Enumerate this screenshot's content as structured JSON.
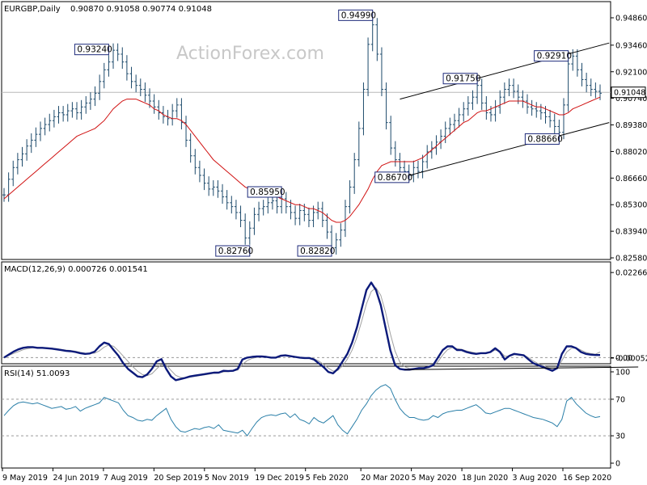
{
  "chart_data": {
    "type": "line",
    "symbol_label": "EURGBP,Daily",
    "ohlc_readout": "0.90870 0.91058 0.90774 0.91048",
    "watermark": "ActionForex.com",
    "current_price_label": "0.91048",
    "x_tick_labels": [
      "9 May 2019",
      "24 Jun 2019",
      "7 Aug 2019",
      "20 Sep 2019",
      "5 Nov 2019",
      "19 Dec 2019",
      "5 Feb 2020",
      "20 Mar 2020",
      "5 May 2020",
      "18 Jun 2020",
      "3 Aug 2020",
      "16 Sep 2020"
    ],
    "price_panel": {
      "ylim": [
        0.8258,
        0.9486
      ],
      "y_ticks": [
        "0.94860",
        "0.93460",
        "0.92100",
        "0.90740",
        "0.89380",
        "0.88020",
        "0.86660",
        "0.85300",
        "0.83940",
        "0.82580"
      ],
      "current_price": 0.91048,
      "close_values": [
        0.858,
        0.866,
        0.872,
        0.876,
        0.879,
        0.883,
        0.886,
        0.889,
        0.892,
        0.894,
        0.896,
        0.898,
        0.9,
        0.899,
        0.901,
        0.902,
        0.9,
        0.903,
        0.905,
        0.907,
        0.91,
        0.916,
        0.922,
        0.926,
        0.932,
        0.93,
        0.926,
        0.92,
        0.916,
        0.914,
        0.912,
        0.909,
        0.906,
        0.903,
        0.9,
        0.898,
        0.897,
        0.901,
        0.904,
        0.895,
        0.886,
        0.878,
        0.872,
        0.868,
        0.864,
        0.861,
        0.862,
        0.86,
        0.857,
        0.854,
        0.852,
        0.849,
        0.845,
        0.836,
        0.841,
        0.848,
        0.851,
        0.852,
        0.854,
        0.855,
        0.852,
        0.856,
        0.852,
        0.849,
        0.846,
        0.85,
        0.848,
        0.845,
        0.849,
        0.851,
        0.845,
        0.839,
        0.831,
        0.835,
        0.84,
        0.852,
        0.862,
        0.876,
        0.892,
        0.912,
        0.935,
        0.945,
        0.93,
        0.912,
        0.895,
        0.882,
        0.876,
        0.872,
        0.87,
        0.868,
        0.872,
        0.87,
        0.875,
        0.88,
        0.882,
        0.885,
        0.888,
        0.892,
        0.894,
        0.896,
        0.899,
        0.902,
        0.905,
        0.908,
        0.914,
        0.905,
        0.9,
        0.899,
        0.903,
        0.908,
        0.912,
        0.914,
        0.911,
        0.908,
        0.906,
        0.903,
        0.902,
        0.901,
        0.9,
        0.898,
        0.896,
        0.893,
        0.89,
        0.904,
        0.925,
        0.929,
        0.922,
        0.917,
        0.914,
        0.912,
        0.911,
        0.91
      ],
      "ma_values": [
        0.856,
        0.858,
        0.86,
        0.862,
        0.864,
        0.866,
        0.868,
        0.87,
        0.872,
        0.874,
        0.876,
        0.878,
        0.88,
        0.882,
        0.884,
        0.886,
        0.888,
        0.889,
        0.89,
        0.891,
        0.892,
        0.894,
        0.896,
        0.899,
        0.902,
        0.904,
        0.906,
        0.907,
        0.907,
        0.907,
        0.906,
        0.905,
        0.904,
        0.902,
        0.901,
        0.899,
        0.898,
        0.897,
        0.897,
        0.896,
        0.894,
        0.891,
        0.888,
        0.885,
        0.882,
        0.879,
        0.876,
        0.874,
        0.872,
        0.87,
        0.868,
        0.866,
        0.864,
        0.862,
        0.861,
        0.86,
        0.859,
        0.858,
        0.858,
        0.857,
        0.857,
        0.856,
        0.855,
        0.854,
        0.853,
        0.853,
        0.852,
        0.851,
        0.851,
        0.85,
        0.849,
        0.847,
        0.845,
        0.844,
        0.844,
        0.845,
        0.847,
        0.85,
        0.853,
        0.857,
        0.861,
        0.866,
        0.87,
        0.873,
        0.874,
        0.875,
        0.875,
        0.875,
        0.875,
        0.875,
        0.875,
        0.876,
        0.877,
        0.879,
        0.881,
        0.883,
        0.885,
        0.887,
        0.889,
        0.891,
        0.893,
        0.895,
        0.896,
        0.898,
        0.9,
        0.901,
        0.901,
        0.902,
        0.903,
        0.904,
        0.905,
        0.906,
        0.906,
        0.906,
        0.906,
        0.905,
        0.904,
        0.903,
        0.903,
        0.902,
        0.901,
        0.9,
        0.899,
        0.899,
        0.9,
        0.902,
        0.903,
        0.904,
        0.905,
        0.906,
        0.907,
        0.908
      ],
      "callouts": [
        {
          "label": "0.93240",
          "index": 23,
          "value": 0.9324,
          "side": "left"
        },
        {
          "label": "0.82760",
          "index": 54,
          "value": 0.8276,
          "side": "left"
        },
        {
          "label": "0.85950",
          "index": 61,
          "value": 0.8595,
          "side": "left"
        },
        {
          "label": "0.82820",
          "index": 72,
          "value": 0.8282,
          "side": "left"
        },
        {
          "label": "0.94990",
          "index": 81,
          "value": 0.9499,
          "side": "left"
        },
        {
          "label": "0.86700",
          "index": 89,
          "value": 0.867,
          "side": "left"
        },
        {
          "label": "0.91750",
          "index": 104,
          "value": 0.9175,
          "side": "left"
        },
        {
          "label": "0.88660",
          "index": 122,
          "value": 0.8866,
          "side": "left"
        },
        {
          "label": "0.92910",
          "index": 124,
          "value": 0.9291,
          "side": "left"
        }
      ],
      "trendlines": [
        {
          "from": {
            "index": 87,
            "value": 0.907
          },
          "to": {
            "index": 133,
            "value": 0.9357
          }
        },
        {
          "from": {
            "index": 87,
            "value": 0.8667
          },
          "to": {
            "index": 133,
            "value": 0.895
          }
        }
      ]
    },
    "macd_panel": {
      "label": "MACD(12,26,9) 0.000726 0.001541",
      "ylim": [
        -0.0012,
        0.0242
      ],
      "y_ticks": [
        "0.022662",
        "0.00",
        "-0.00052"
      ],
      "macd_values": [
        0.0,
        0.0008,
        0.0016,
        0.0022,
        0.0026,
        0.0028,
        0.0028,
        0.0026,
        0.0026,
        0.0025,
        0.0024,
        0.0022,
        0.002,
        0.0018,
        0.0017,
        0.0015,
        0.0012,
        0.001,
        0.0011,
        0.0016,
        0.003,
        0.004,
        0.0036,
        0.002,
        0.0005,
        -0.0015,
        -0.003,
        -0.004,
        -0.005,
        -0.0052,
        -0.0045,
        -0.003,
        -0.001,
        -0.0004,
        -0.003,
        -0.005,
        -0.006,
        -0.0057,
        -0.0054,
        -0.005,
        -0.0048,
        -0.0046,
        -0.0044,
        -0.0042,
        -0.004,
        -0.004,
        -0.0035,
        -0.0036,
        -0.0035,
        -0.003,
        -0.0005,
        0.0,
        0.0002,
        0.0003,
        0.0003,
        0.0002,
        0.0,
        0.0,
        0.0005,
        0.0006,
        0.0004,
        0.0002,
        0.0,
        -0.0001,
        -0.0001,
        -0.0005,
        -0.0015,
        -0.0025,
        -0.0038,
        -0.0042,
        -0.003,
        -0.001,
        0.001,
        0.004,
        0.008,
        0.013,
        0.018,
        0.02,
        0.018,
        0.014,
        0.008,
        0.002,
        -0.002,
        -0.003,
        -0.0032,
        -0.0032,
        -0.003,
        -0.0028,
        -0.0028,
        -0.0025,
        -0.002,
        0.0,
        0.002,
        0.003,
        0.003,
        0.002,
        0.002,
        0.0015,
        0.0012,
        0.001,
        0.0012,
        0.0012,
        0.0015,
        0.0025,
        0.0015,
        -0.0005,
        0.0005,
        0.001,
        0.0008,
        0.0006,
        -0.0005,
        -0.0015,
        -0.002,
        -0.0025,
        -0.003,
        -0.0035,
        -0.0028,
        0.001,
        0.003,
        0.003,
        0.0025,
        0.0015,
        0.001,
        0.0008,
        0.0007,
        0.0007
      ],
      "signal_values": [
        0.0002,
        0.0006,
        0.0011,
        0.0016,
        0.0021,
        0.0024,
        0.0026,
        0.0027,
        0.0027,
        0.0026,
        0.0025,
        0.0024,
        0.0022,
        0.002,
        0.0019,
        0.0017,
        0.0014,
        0.0012,
        0.0011,
        0.0012,
        0.0018,
        0.0028,
        0.0034,
        0.003,
        0.0018,
        0.0004,
        -0.001,
        -0.0024,
        -0.0036,
        -0.0045,
        -0.0048,
        -0.0043,
        -0.003,
        -0.0018,
        -0.002,
        -0.0034,
        -0.0047,
        -0.0053,
        -0.0054,
        -0.0052,
        -0.005,
        -0.0048,
        -0.0046,
        -0.0044,
        -0.0042,
        -0.0041,
        -0.0038,
        -0.0037,
        -0.0036,
        -0.0033,
        -0.0018,
        -0.0008,
        -0.0002,
        0.0001,
        0.0002,
        0.0002,
        0.0001,
        0.0,
        0.0003,
        0.0005,
        0.0005,
        0.0003,
        0.0001,
        0.0,
        -0.0001,
        -0.0003,
        -0.0009,
        -0.0018,
        -0.0028,
        -0.0036,
        -0.0034,
        -0.0022,
        -0.0004,
        0.002,
        0.0054,
        0.0097,
        0.0143,
        0.0176,
        0.0186,
        0.0166,
        0.0121,
        0.0064,
        0.0017,
        -0.0012,
        -0.0024,
        -0.0029,
        -0.003,
        -0.0029,
        -0.0028,
        -0.0027,
        -0.0023,
        -0.0011,
        0.0007,
        0.0021,
        0.0027,
        0.0024,
        0.0022,
        0.0018,
        0.0015,
        0.0012,
        0.0012,
        0.0012,
        0.0014,
        0.002,
        0.0017,
        0.0004,
        0.0004,
        0.0008,
        0.0008,
        0.0007,
        0.0,
        -0.0009,
        -0.0016,
        -0.0021,
        -0.0026,
        -0.0031,
        -0.003,
        -0.0008,
        0.0015,
        0.0025,
        0.0026,
        0.002,
        0.0014,
        0.0011,
        0.0009,
        0.0015
      ],
      "trendline": {
        "from": {
          "index": 84,
          "value": -0.0032
        },
        "to": {
          "index": 133,
          "value": -0.0025
        }
      }
    },
    "rsi_panel": {
      "label": "RSI(14) 51.0093",
      "ylim": [
        0,
        100
      ],
      "y_ticks": [
        "100",
        "70",
        "30",
        "0"
      ],
      "levels": [
        70,
        30
      ],
      "values": [
        52,
        58,
        63,
        66,
        67,
        66,
        65,
        66,
        64,
        62,
        60,
        61,
        62,
        59,
        60,
        62,
        57,
        60,
        62,
        64,
        66,
        72,
        70,
        68,
        66,
        58,
        52,
        50,
        47,
        46,
        48,
        47,
        52,
        56,
        60,
        48,
        40,
        35,
        34,
        36,
        38,
        37,
        39,
        40,
        38,
        42,
        36,
        35,
        34,
        33,
        36,
        30,
        38,
        45,
        50,
        52,
        53,
        52,
        54,
        55,
        50,
        54,
        48,
        46,
        43,
        50,
        46,
        44,
        48,
        52,
        42,
        36,
        32,
        40,
        48,
        58,
        65,
        74,
        80,
        84,
        86,
        82,
        70,
        60,
        54,
        50,
        50,
        48,
        47,
        48,
        52,
        50,
        54,
        56,
        57,
        58,
        58,
        60,
        62,
        64,
        60,
        55,
        54,
        56,
        58,
        60,
        60,
        58,
        56,
        54,
        52,
        50,
        49,
        48,
        46,
        44,
        40,
        48,
        68,
        72,
        65,
        60,
        55,
        52,
        50,
        51
      ]
    }
  }
}
